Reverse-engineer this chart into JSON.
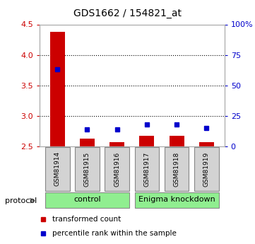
{
  "title": "GDS1662 / 154821_at",
  "samples": [
    "GSM81914",
    "GSM81915",
    "GSM81916",
    "GSM81917",
    "GSM81918",
    "GSM81919"
  ],
  "transformed_count": [
    4.38,
    2.63,
    2.57,
    2.67,
    2.67,
    2.57
  ],
  "percentile_rank": [
    63,
    14,
    14,
    18,
    18,
    15
  ],
  "ylim_left": [
    2.5,
    4.5
  ],
  "ylim_right": [
    0,
    100
  ],
  "yticks_left": [
    2.5,
    3.0,
    3.5,
    4.0,
    4.5
  ],
  "yticks_right": [
    0,
    25,
    50,
    75,
    100
  ],
  "ytick_labels_right": [
    "0",
    "25",
    "50",
    "75",
    "100%"
  ],
  "bar_color_red": "#cc0000",
  "dot_color_blue": "#0000cc",
  "bar_width": 0.5,
  "background_color": "#ffffff",
  "ylabel_left_color": "#cc0000",
  "ylabel_right_color": "#0000cc",
  "protocol_label": "protocol",
  "legend_red_label": "transformed count",
  "legend_blue_label": "percentile rank within the sample",
  "control_color": "#90ee90",
  "label_box_color": "#d3d3d3"
}
